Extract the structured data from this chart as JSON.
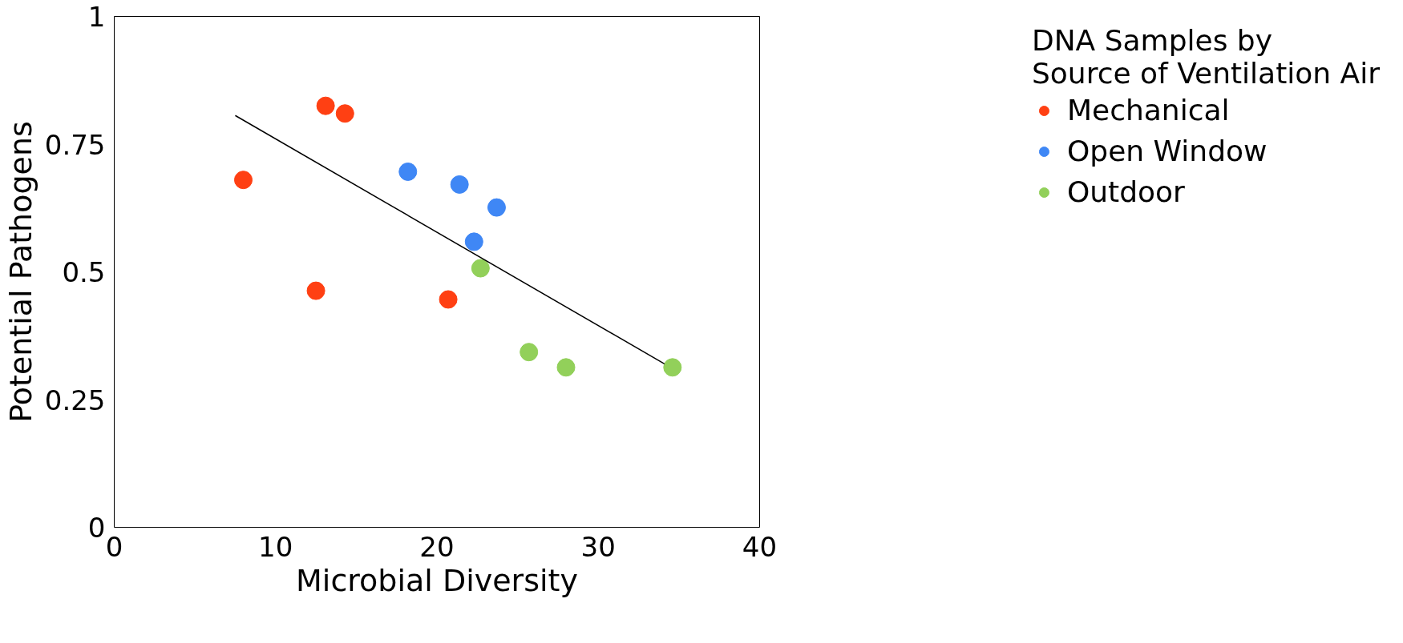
{
  "chart_data": {
    "type": "scatter",
    "xlabel": "Microbial Diversity",
    "ylabel": "Potential Pathogens",
    "legend_title": "DNA Samples by\nSource of Ventilation Air",
    "xlim": [
      0,
      40
    ],
    "ylim": [
      0,
      1
    ],
    "xticks": [
      0,
      10,
      20,
      30,
      40
    ],
    "yticks": [
      0,
      0.25,
      0.5,
      0.75,
      1
    ],
    "grid": false,
    "legend": "right",
    "marker": "circle",
    "series": [
      {
        "name": "Mechanical",
        "color": "#ff4013",
        "x": [
          8.0,
          13.1,
          14.3,
          12.5,
          20.7
        ],
        "values": [
          0.68,
          0.825,
          0.81,
          0.463,
          0.446
        ]
      },
      {
        "name": "Open Window",
        "color": "#3f87f5",
        "x": [
          18.2,
          21.4,
          23.7,
          22.3
        ],
        "values": [
          0.696,
          0.671,
          0.626,
          0.559
        ]
      },
      {
        "name": "Outdoor",
        "color": "#92d05a",
        "x": [
          22.7,
          25.7,
          28.0,
          34.6
        ],
        "values": [
          0.507,
          0.343,
          0.313,
          0.313
        ]
      },
      {
        "type": "line",
        "marker": "none",
        "color": "#000000",
        "x": [
          7.5,
          34.1
        ],
        "values": [
          0.806,
          0.32
        ]
      }
    ]
  }
}
